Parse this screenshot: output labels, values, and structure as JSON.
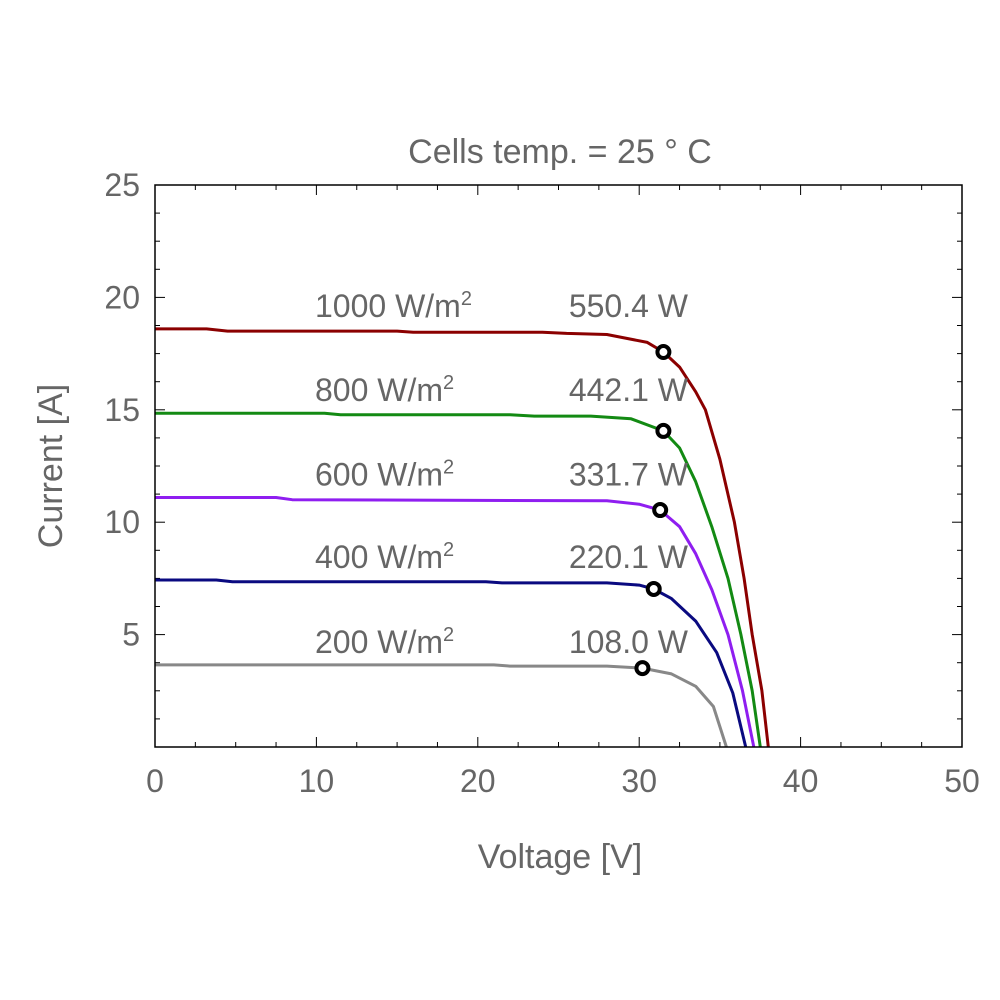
{
  "chart_data": {
    "type": "line",
    "title": "Cells temp. = 25 ° C",
    "xlabel": "Voltage [V]",
    "ylabel": "Current [A]",
    "xlim": [
      0,
      50
    ],
    "ylim": [
      0,
      25
    ],
    "xticks": [
      0,
      10,
      20,
      30,
      40,
      50
    ],
    "yticks": [
      5,
      10,
      15,
      20,
      25
    ],
    "grid": false,
    "series": [
      {
        "name": "1000 W/m²",
        "label_base": "1000 W/m",
        "power_label": "550.4 W",
        "color": "#8b0000",
        "mpp": [
          31.5,
          17.57
        ],
        "points": [
          [
            0,
            18.6
          ],
          [
            3.2,
            18.6
          ],
          [
            4.5,
            18.5
          ],
          [
            15,
            18.5
          ],
          [
            16,
            18.45
          ],
          [
            24,
            18.45
          ],
          [
            25.5,
            18.4
          ],
          [
            28,
            18.35
          ],
          [
            30.5,
            18.0
          ],
          [
            31.5,
            17.57
          ],
          [
            32.5,
            16.9
          ],
          [
            33.5,
            15.8
          ],
          [
            34.1,
            15.0
          ],
          [
            35,
            12.8
          ],
          [
            35.9,
            10.0
          ],
          [
            36.5,
            7.5
          ],
          [
            37,
            5.0
          ],
          [
            37.6,
            2.5
          ],
          [
            38,
            0
          ]
        ]
      },
      {
        "name": "800 W/m²",
        "label_base": "800 W/m",
        "power_label": "442.1 W",
        "color": "#138a13",
        "mpp": [
          31.5,
          14.06
        ],
        "points": [
          [
            0,
            14.85
          ],
          [
            10.5,
            14.85
          ],
          [
            11.5,
            14.78
          ],
          [
            22,
            14.78
          ],
          [
            23.5,
            14.72
          ],
          [
            27,
            14.72
          ],
          [
            29.5,
            14.6
          ],
          [
            31.5,
            14.06
          ],
          [
            32.5,
            13.3
          ],
          [
            33.5,
            11.8
          ],
          [
            34.5,
            9.8
          ],
          [
            35.5,
            7.5
          ],
          [
            36.3,
            5.0
          ],
          [
            37,
            2.5
          ],
          [
            37.5,
            0
          ]
        ]
      },
      {
        "name": "600 W/m²",
        "label_base": "600 W/m",
        "power_label": "331.7 W",
        "color": "#8f1ef0",
        "mpp": [
          31.3,
          10.54
        ],
        "points": [
          [
            0,
            11.1
          ],
          [
            7.5,
            11.1
          ],
          [
            8.5,
            11.0
          ],
          [
            28,
            10.95
          ],
          [
            30,
            10.8
          ],
          [
            31.3,
            10.54
          ],
          [
            32.5,
            9.8
          ],
          [
            33.5,
            8.6
          ],
          [
            34.5,
            7.0
          ],
          [
            35.5,
            5.0
          ],
          [
            36.4,
            2.5
          ],
          [
            37.1,
            0
          ]
        ]
      },
      {
        "name": "400 W/m²",
        "label_base": "400 W/m",
        "power_label": "220.1 W",
        "color": "#0a0a80",
        "mpp": [
          30.9,
          7.03
        ],
        "points": [
          [
            0,
            7.43
          ],
          [
            3.8,
            7.43
          ],
          [
            4.8,
            7.35
          ],
          [
            20.5,
            7.35
          ],
          [
            21.5,
            7.3
          ],
          [
            28,
            7.3
          ],
          [
            30,
            7.2
          ],
          [
            30.9,
            7.03
          ],
          [
            32,
            6.6
          ],
          [
            33.5,
            5.6
          ],
          [
            34.8,
            4.2
          ],
          [
            35.8,
            2.4
          ],
          [
            36.6,
            0
          ]
        ]
      },
      {
        "name": "200 W/m²",
        "label_base": "200 W/m",
        "power_label": "108.0 W",
        "color": "#888888",
        "mpp": [
          30.2,
          3.51
        ],
        "points": [
          [
            0,
            3.65
          ],
          [
            21,
            3.65
          ],
          [
            22,
            3.6
          ],
          [
            28,
            3.6
          ],
          [
            30.2,
            3.51
          ],
          [
            32,
            3.25
          ],
          [
            33.5,
            2.7
          ],
          [
            34.6,
            1.8
          ],
          [
            35.4,
            0
          ]
        ]
      }
    ]
  }
}
